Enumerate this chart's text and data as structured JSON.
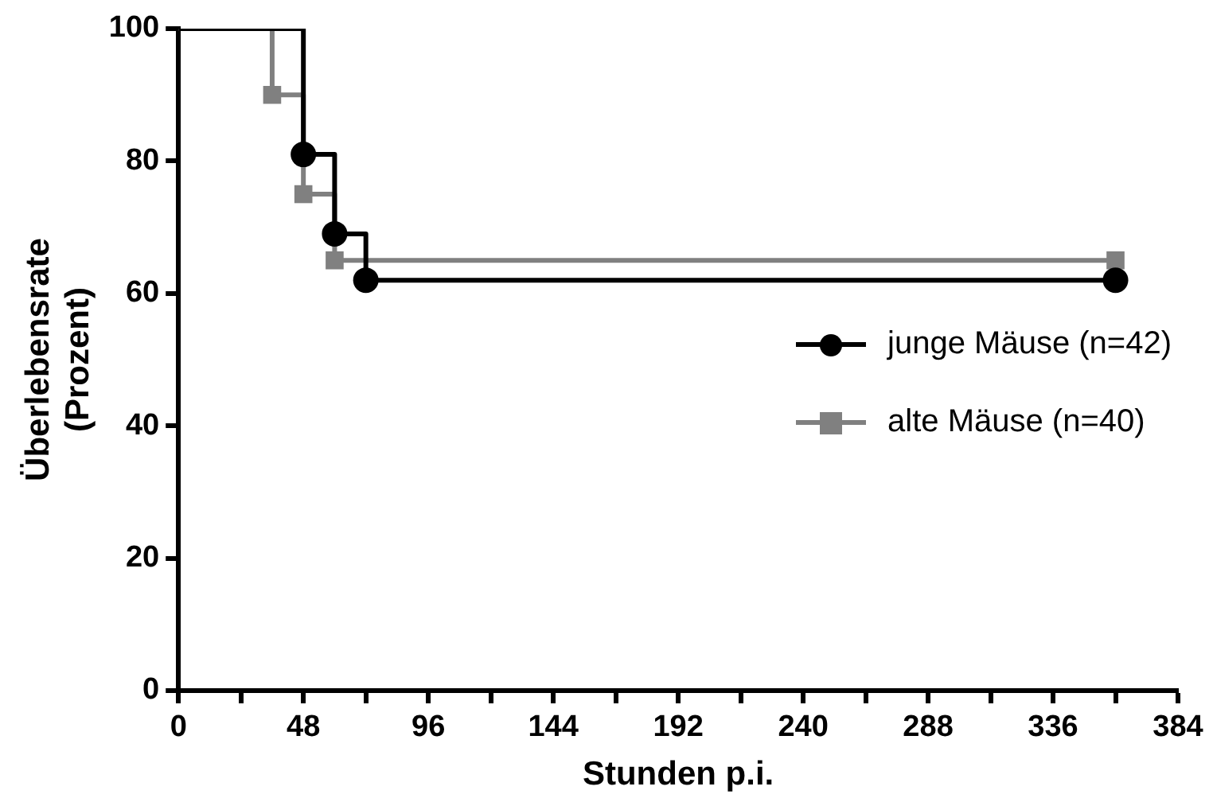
{
  "chart_data": {
    "type": "step",
    "xlabel": "Stunden p.i.",
    "ylabel": "Überlebensrate\n(Prozent)",
    "xlim": [
      0,
      384
    ],
    "xticks": [
      0,
      {
        "value": 24,
        "label": null
      },
      48,
      {
        "value": 72,
        "label": null
      },
      96,
      {
        "value": 120,
        "label": null
      },
      144,
      {
        "value": 168,
        "label": null
      },
      192,
      {
        "value": 216,
        "label": null
      },
      240,
      {
        "value": 264,
        "label": null
      },
      288,
      {
        "value": 312,
        "label": null
      },
      336,
      {
        "value": 360,
        "label": null
      },
      384
    ],
    "ylim": [
      0,
      100
    ],
    "yticks": [
      0,
      20,
      40,
      60,
      80,
      100
    ],
    "grid": false,
    "legend": "right",
    "series": [
      {
        "name": "junge Mäuse (n=42)",
        "color": "#000000",
        "marker": "circle",
        "x": [
          0,
          48,
          60,
          72,
          360
        ],
        "values": [
          100,
          81,
          69,
          62,
          62
        ]
      },
      {
        "name": "alte Mäuse (n=40)",
        "color": "#808080",
        "marker": "square",
        "x": [
          0,
          36,
          48,
          60,
          360
        ],
        "values": [
          100,
          90,
          75,
          65,
          65
        ]
      }
    ]
  }
}
